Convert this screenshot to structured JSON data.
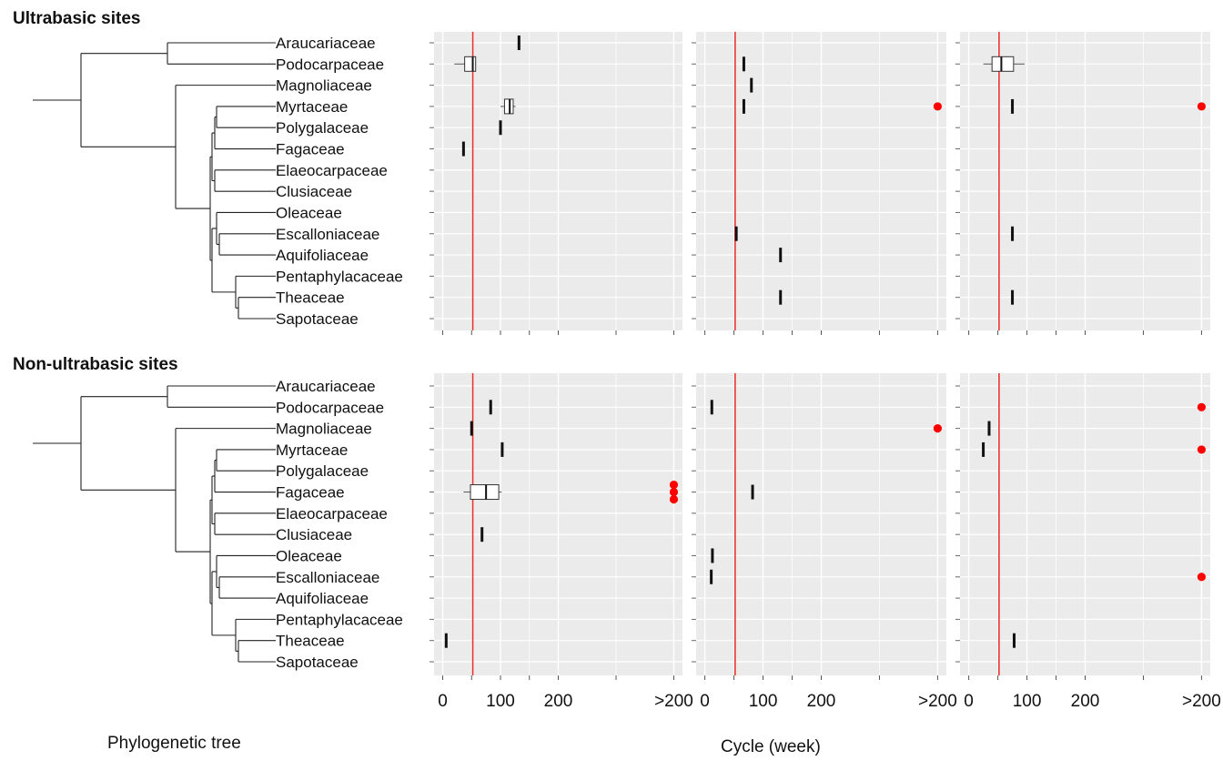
{
  "sections": [
    {
      "title": "Ultrabasic sites"
    },
    {
      "title": "Non-ultrabasic sites"
    }
  ],
  "captions": {
    "tree": "Phylogenetic tree",
    "x_axis": "Cycle (week)"
  },
  "colors": {
    "panel_bg": "#ebebeb",
    "grid": "#ffffff",
    "reference_line": "#e8332f",
    "outlier": "#ff0000",
    "box_stroke": "#333333",
    "text": "#111111"
  },
  "chart_data": {
    "type": "boxplot",
    "families": [
      "Araucariaceae",
      "Podocarpaceae",
      "Magnoliaceae",
      "Myrtaceae",
      "Polygalaceae",
      "Fagaceae",
      "Elaeocarpaceae",
      "Clusiaceae",
      "Oleaceae",
      "Escalloniaceae",
      "Aquifoliaceae",
      "Pentaphylacaceae",
      "Theaceae",
      "Sapotaceae"
    ],
    "x_tick_labels": [
      "0",
      "100",
      "200",
      ">200"
    ],
    "x_tick_values": [
      0,
      100,
      200,
      400
    ],
    "xlim": [
      -15,
      415
    ],
    "reference_line_x": 52,
    "outlier_x": 400,
    "x_label": "Cycle (week)",
    "grid": true,
    "panels": [
      {
        "section": "Ultrabasic sites",
        "column": 1,
        "entries": [
          {
            "family": "Araucariaceae",
            "median": 132
          },
          {
            "family": "Podocarpaceae",
            "min": 20,
            "q1": 38,
            "median": 52,
            "q3": 57,
            "max": 58
          },
          {
            "family": "Myrtaceae",
            "min": 100,
            "q1": 107,
            "median": 116,
            "q3": 122,
            "max": 126
          },
          {
            "family": "Polygalaceae",
            "median": 100
          },
          {
            "family": "Fagaceae",
            "median": 36
          }
        ]
      },
      {
        "section": "Ultrabasic sites",
        "column": 2,
        "entries": [
          {
            "family": "Podocarpaceae",
            "median": 67
          },
          {
            "family": "Magnoliaceae",
            "median": 80
          },
          {
            "family": "Myrtaceae",
            "median": 67,
            "outliers": 1
          },
          {
            "family": "Escalloniaceae",
            "median": 54
          },
          {
            "family": "Aquifoliaceae",
            "median": 130
          },
          {
            "family": "Theaceae",
            "median": 130
          }
        ]
      },
      {
        "section": "Ultrabasic sites",
        "column": 3,
        "entries": [
          {
            "family": "Podocarpaceae",
            "min": 25,
            "q1": 40,
            "median": 56,
            "q3": 77,
            "max": 96
          },
          {
            "family": "Myrtaceae",
            "median": 75,
            "outliers": 1
          },
          {
            "family": "Escalloniaceae",
            "median": 75
          },
          {
            "family": "Theaceae",
            "median": 75
          }
        ]
      },
      {
        "section": "Non-ultrabasic sites",
        "column": 1,
        "entries": [
          {
            "family": "Podocarpaceae",
            "median": 83
          },
          {
            "family": "Magnoliaceae",
            "median": 50
          },
          {
            "family": "Myrtaceae",
            "median": 103
          },
          {
            "family": "Fagaceae",
            "min": 36,
            "q1": 48,
            "median": 75,
            "q3": 97,
            "max": 102,
            "outliers": 3
          },
          {
            "family": "Clusiaceae",
            "median": 68
          },
          {
            "family": "Theaceae",
            "median": 6
          }
        ]
      },
      {
        "section": "Non-ultrabasic sites",
        "column": 2,
        "entries": [
          {
            "family": "Podocarpaceae",
            "median": 12
          },
          {
            "family": "Magnoliaceae",
            "outliers": 1
          },
          {
            "family": "Fagaceae",
            "median": 82
          },
          {
            "family": "Oleaceae",
            "median": 13
          },
          {
            "family": "Escalloniaceae",
            "median": 11
          }
        ]
      },
      {
        "section": "Non-ultrabasic sites",
        "column": 3,
        "entries": [
          {
            "family": "Podocarpaceae",
            "outliers": 1
          },
          {
            "family": "Magnoliaceae",
            "median": 35
          },
          {
            "family": "Myrtaceae",
            "median": 25,
            "outliers": 1
          },
          {
            "family": "Escalloniaceae",
            "outliers": 1
          },
          {
            "family": "Theaceae",
            "median": 78
          }
        ]
      }
    ]
  }
}
